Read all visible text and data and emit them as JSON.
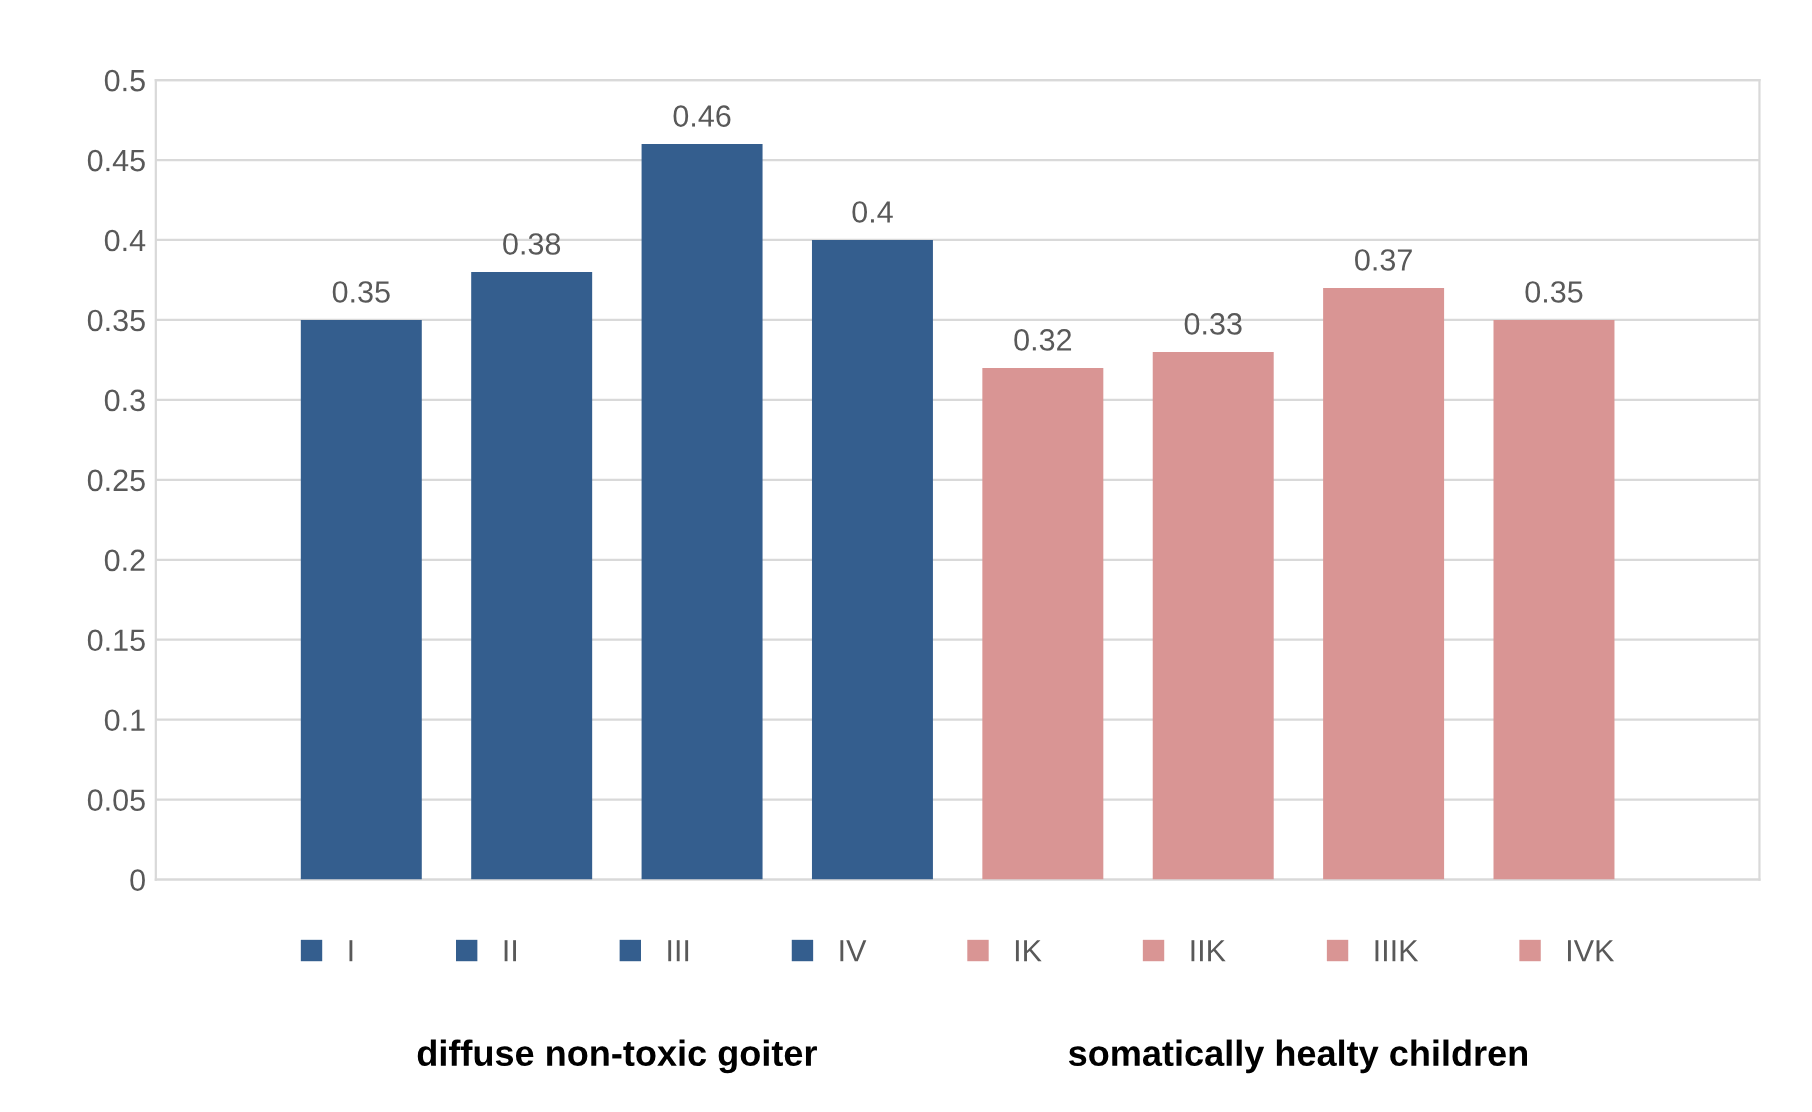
{
  "chart_data": {
    "type": "bar",
    "categories": [
      null
    ],
    "series": [
      {
        "name": "I",
        "color": "#345e8e",
        "values": [
          0.35
        ]
      },
      {
        "name": "II",
        "color": "#345e8e",
        "values": [
          0.38
        ]
      },
      {
        "name": "III",
        "color": "#345e8e",
        "values": [
          0.46
        ]
      },
      {
        "name": "IV",
        "color": "#345e8e",
        "values": [
          0.4
        ]
      },
      {
        "name": "IK",
        "color": "#d99594",
        "values": [
          0.32
        ]
      },
      {
        "name": "IIK",
        "color": "#d99594",
        "values": [
          0.33
        ]
      },
      {
        "name": "IIIK",
        "color": "#d99594",
        "values": [
          0.37
        ]
      },
      {
        "name": "IVK",
        "color": "#d99594",
        "values": [
          0.35
        ]
      }
    ],
    "ylim": [
      0,
      0.5
    ],
    "yticks": [
      0,
      0.05,
      0.1,
      0.15,
      0.2,
      0.25,
      0.3,
      0.35,
      0.4,
      0.45,
      0.5
    ],
    "grid": "y",
    "legend": "bottom",
    "data_labels": true,
    "annotations": [
      "diffuse non-toxic goiter",
      "somatically healty children"
    ]
  }
}
